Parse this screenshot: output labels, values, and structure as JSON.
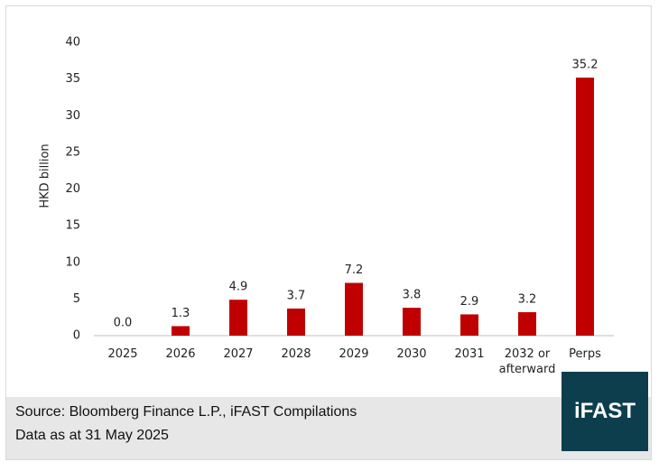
{
  "chart_data": {
    "type": "bar",
    "y_label": "HKD billion",
    "categories": [
      "2025",
      "2026",
      "2027",
      "2028",
      "2029",
      "2030",
      "2031",
      "2032 or afterward",
      "Perps"
    ],
    "values": [
      0,
      1.3,
      4.9,
      3.7,
      7.2,
      3.8,
      2.9,
      3.2,
      35.2
    ],
    "value_labels": [
      "0.0",
      "1.3",
      "4.9",
      "3.7",
      "7.2",
      "3.8",
      "2.9",
      "3.2",
      "35.2"
    ],
    "color": "#c00000",
    "ylim": [
      0,
      40
    ],
    "yticks": [
      0,
      5,
      10,
      15,
      20,
      25,
      30,
      35,
      40
    ],
    "grid": false
  },
  "footer": {
    "source": "Source: Bloomberg Finance L.P., iFAST Compilations",
    "note": "Data as at 31 May 2025"
  },
  "logo": "iFAST"
}
